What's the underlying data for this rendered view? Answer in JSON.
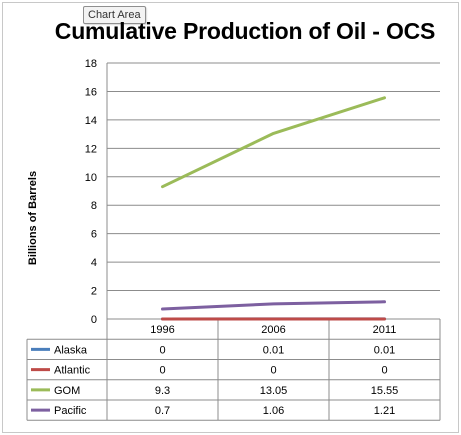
{
  "tooltip": "Chart Area",
  "chart_data": {
    "type": "line",
    "title": "Cumulative Production of Oil - OCS",
    "xlabel": "",
    "ylabel": "Billions of Barrels",
    "ylim": [
      0,
      18
    ],
    "yticks": [
      "0",
      "2",
      "4",
      "6",
      "8",
      "10",
      "12",
      "14",
      "16",
      "18"
    ],
    "categories": [
      "1996",
      "2006",
      "2011"
    ],
    "grid": "horizontal",
    "legend": "data-table",
    "series": [
      {
        "name": "Alaska",
        "color": "#4a7ebb",
        "values": [
          0,
          0.01,
          0.01
        ],
        "labels": [
          "0",
          "0.01",
          "0.01"
        ]
      },
      {
        "name": "Atlantic",
        "color": "#be4b48",
        "values": [
          0,
          0,
          0
        ],
        "labels": [
          "0",
          "0",
          "0"
        ]
      },
      {
        "name": "GOM",
        "color": "#9bbb59",
        "values": [
          9.3,
          13.05,
          15.55
        ],
        "labels": [
          "9.3",
          "13.05",
          "15.55"
        ]
      },
      {
        "name": "Pacific",
        "color": "#7d60a0",
        "values": [
          0.7,
          1.06,
          1.21
        ],
        "labels": [
          "0.7",
          "1.06",
          "1.21"
        ]
      }
    ]
  }
}
